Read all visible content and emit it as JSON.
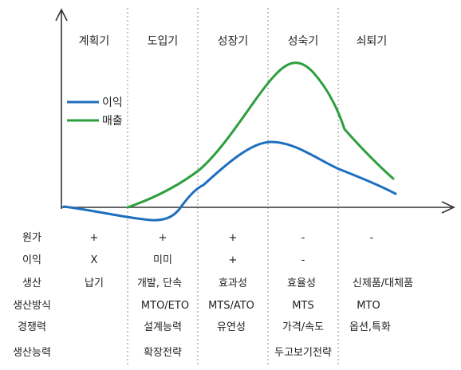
{
  "phases": [
    "계획기",
    "도입기",
    "성장기",
    "성숙기",
    "쇠퇴기"
  ],
  "legend": {
    "profit": {
      "label": "이익",
      "color": "#1f6fbf"
    },
    "sales": {
      "label": "매출",
      "color": "#2e9e3e"
    }
  },
  "rows": [
    {
      "label": "원가",
      "cells": [
        "+",
        "+",
        "+",
        "-",
        "-"
      ]
    },
    {
      "label": "이익",
      "cells": [
        "X",
        "미미",
        "+",
        "-",
        ""
      ]
    },
    {
      "label": "생산",
      "cells": [
        "납기",
        "개발, 단속",
        "효과성",
        "효율성",
        "신제품/대체품"
      ]
    },
    {
      "label": "생산방식",
      "cells": [
        "",
        "MTO/ETO",
        "MTS/ATO",
        "MTS",
        "MTO"
      ]
    },
    {
      "label": "경쟁력",
      "cells": [
        "",
        "설계능력",
        "유연성",
        "가격/속도",
        "옵션,특화"
      ]
    }
  ],
  "capacity": {
    "label": "생산능력",
    "strategy_left": "확장전략",
    "strategy_right": "두고보기전략"
  }
}
